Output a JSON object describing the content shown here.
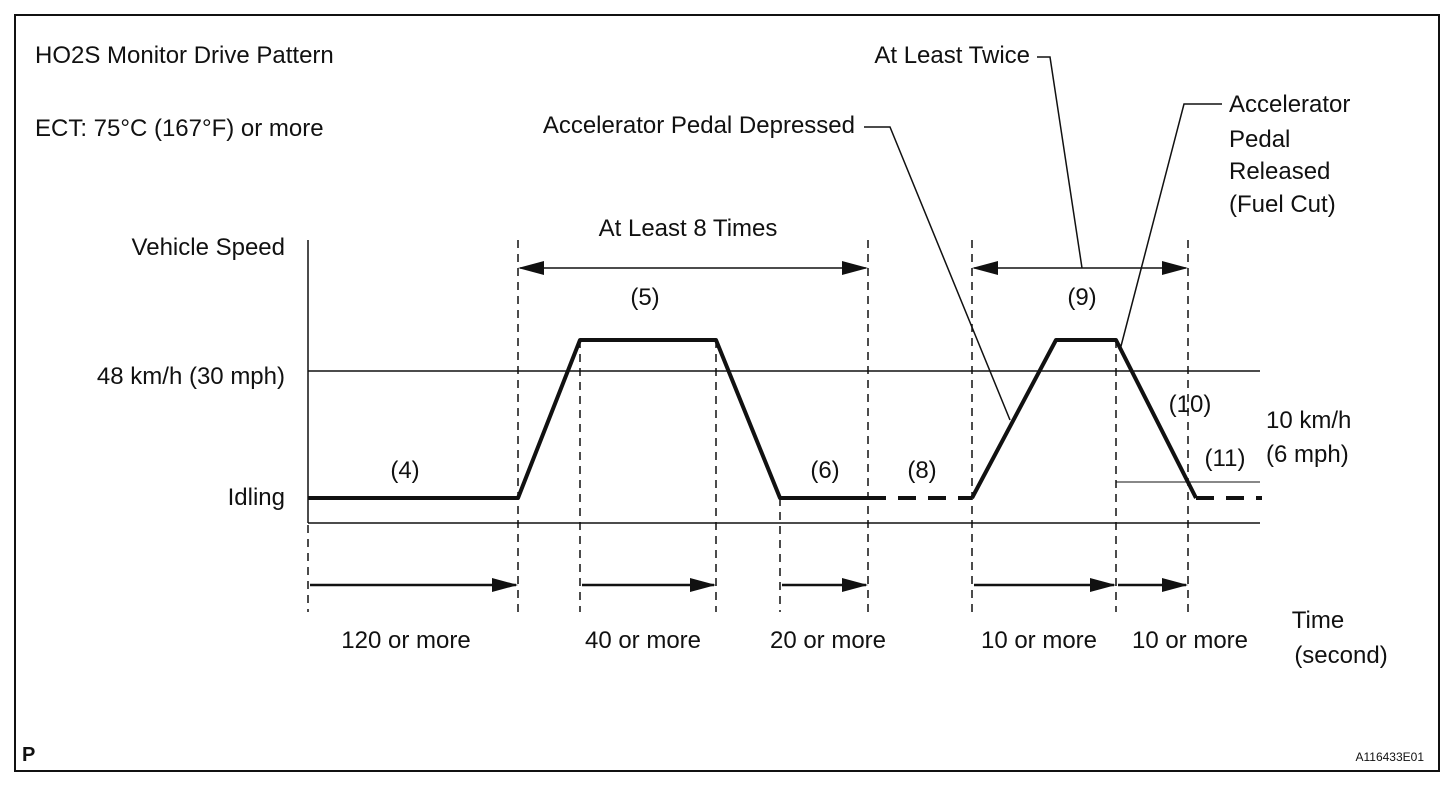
{
  "title": "HO2S Monitor Drive Pattern",
  "condition": "ECT: 75°C (167°F) or more",
  "axes": {
    "y_label": "Vehicle Speed",
    "y_ticks": [
      "48 km/h (30 mph)",
      "Idling"
    ],
    "x_label_line1": "Time",
    "x_label_line2": "(second)"
  },
  "steps": {
    "s4": "(4)",
    "s5": "(5)",
    "s6": "(6)",
    "s8": "(8)",
    "s9": "(9)",
    "s10": "(10)",
    "s11": "(11)"
  },
  "durations": [
    "120 or more",
    "40 or more",
    "20 or more",
    "10 or more",
    "10 or more"
  ],
  "annotations": {
    "at_least_8_times": "At Least 8 Times",
    "at_least_twice": "At Least Twice",
    "pedal_depressed": "Accelerator Pedal Depressed",
    "pedal_released_lines": [
      "Accelerator",
      "Pedal",
      "Released",
      "(Fuel Cut)"
    ],
    "speed_10_line1": "10 km/h",
    "speed_10_line2": "(6 mph)"
  },
  "footer": {
    "corner_mark": "P",
    "figure_id": "A116433E01"
  },
  "colors": {
    "line": "#111111",
    "background": "#ffffff"
  }
}
